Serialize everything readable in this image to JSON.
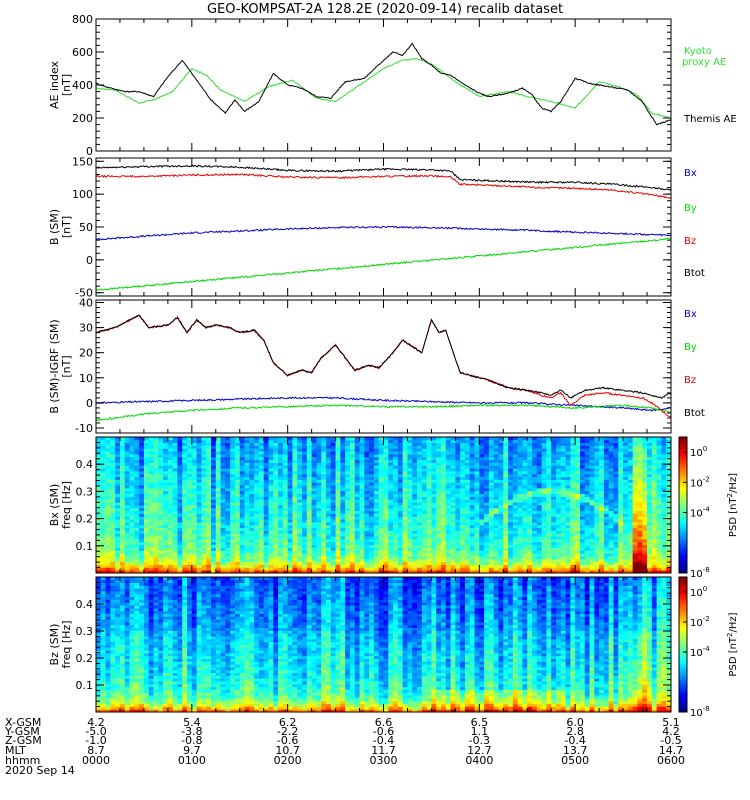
{
  "title": "GEO-KOMPSAT-2A 128.2E (2020-09-14) recalib dataset",
  "colors": {
    "black": "#000000",
    "red": "#e80000",
    "green": "#00d800",
    "blue": "#0000cc",
    "kyoto_green": "#33dd33"
  },
  "chart_data": [
    {
      "type": "line",
      "panel": "ae",
      "ylabel": "AE index",
      "yunits": "[nT]",
      "ylim": [
        0,
        800
      ],
      "yticks": [
        "0",
        "200",
        "400",
        "600",
        "800"
      ],
      "xlim": [
        0,
        6
      ],
      "series": [
        {
          "name": "Kyoto proxy AE",
          "color": "#33dd33",
          "x": [
            0,
            0.2,
            0.45,
            0.6,
            0.8,
            1.0,
            1.15,
            1.3,
            1.55,
            1.8,
            2.05,
            2.3,
            2.5,
            2.75,
            3.0,
            3.2,
            3.35,
            3.5,
            3.75,
            4.0,
            4.3,
            4.5,
            4.75,
            5.0,
            5.25,
            5.45,
            5.65,
            5.8,
            6.0
          ],
          "y": [
            380,
            370,
            290,
            310,
            360,
            500,
            460,
            370,
            300,
            390,
            430,
            320,
            300,
            400,
            500,
            550,
            560,
            530,
            420,
            330,
            360,
            330,
            300,
            260,
            420,
            390,
            340,
            230,
            200
          ]
        },
        {
          "name": "Themis AE",
          "color": "#000000",
          "x": [
            0,
            0.1,
            0.3,
            0.45,
            0.6,
            0.75,
            0.9,
            1.05,
            1.2,
            1.35,
            1.45,
            1.55,
            1.7,
            1.85,
            2.0,
            2.15,
            2.3,
            2.45,
            2.6,
            2.8,
            3.0,
            3.1,
            3.2,
            3.3,
            3.4,
            3.5,
            3.6,
            3.7,
            3.85,
            4.0,
            4.1,
            4.3,
            4.45,
            4.55,
            4.65,
            4.75,
            4.85,
            5.0,
            5.15,
            5.35,
            5.55,
            5.7,
            5.85,
            6.0
          ],
          "y": [
            410,
            390,
            360,
            360,
            330,
            450,
            550,
            430,
            310,
            230,
            310,
            240,
            300,
            470,
            400,
            380,
            330,
            320,
            420,
            440,
            550,
            600,
            580,
            650,
            560,
            520,
            470,
            460,
            400,
            350,
            330,
            350,
            380,
            340,
            260,
            240,
            300,
            440,
            410,
            390,
            370,
            300,
            160,
            190
          ]
        }
      ]
    },
    {
      "type": "line",
      "panel": "bfield",
      "ylabel": "B (SM)",
      "yunits": "[nT]",
      "ylim": [
        -55,
        155
      ],
      "yticks": [
        "-50",
        "0",
        "50",
        "100",
        "150"
      ],
      "xlim": [
        0,
        6
      ],
      "series": [
        {
          "name": "Bx",
          "color": "#0000cc",
          "x": [
            0,
            0.5,
            1.0,
            1.5,
            2.0,
            2.5,
            3.0,
            3.5,
            4.0,
            4.5,
            5.0,
            5.5,
            6.0
          ],
          "y": [
            31,
            36,
            41,
            44,
            47,
            49,
            50,
            49,
            47,
            45,
            42,
            40,
            37
          ]
        },
        {
          "name": "By",
          "color": "#00d800",
          "x": [
            0,
            6.0
          ],
          "y": [
            -46,
            32
          ]
        },
        {
          "name": "Bz",
          "color": "#e80000",
          "x": [
            0,
            0.5,
            1.0,
            1.5,
            2.0,
            2.5,
            3.0,
            3.5,
            3.7,
            3.8,
            4.2,
            4.6,
            5.0,
            5.4,
            5.8,
            6.0
          ],
          "y": [
            127,
            127,
            129,
            130,
            126,
            125,
            127,
            128,
            126,
            115,
            113,
            110,
            109,
            106,
            99,
            94
          ]
        },
        {
          "name": "Btot",
          "color": "#000000",
          "x": [
            0,
            0.5,
            1.0,
            1.5,
            2.0,
            2.5,
            3.0,
            3.5,
            3.7,
            3.8,
            4.2,
            4.6,
            5.0,
            5.4,
            5.8,
            6.0
          ],
          "y": [
            140,
            142,
            143,
            141,
            136,
            135,
            138,
            137,
            135,
            122,
            120,
            118,
            118,
            115,
            110,
            106
          ]
        }
      ]
    },
    {
      "type": "line",
      "panel": "residual",
      "ylabel": "B (SM)-IGRF (SM)",
      "yunits": "[nT]",
      "ylim": [
        -12,
        41
      ],
      "yticks": [
        "-10",
        "0",
        "10",
        "20",
        "30",
        "40"
      ],
      "xlim": [
        0,
        6
      ],
      "series": [
        {
          "name": "Bx",
          "color": "#0000cc",
          "x": [
            0,
            0.5,
            1.0,
            1.5,
            2.0,
            2.5,
            3.0,
            3.5,
            4.0,
            4.5,
            5.0,
            5.5,
            5.8,
            6.0
          ],
          "y": [
            0,
            0.5,
            1,
            1.5,
            2,
            2,
            1,
            0.5,
            0,
            0,
            -1,
            -2,
            -3,
            -2
          ]
        },
        {
          "name": "By",
          "color": "#00d800",
          "x": [
            0,
            0.3,
            0.6,
            1.0,
            1.5,
            2.0,
            2.5,
            3.0,
            3.5,
            4.0,
            4.5,
            5.0,
            5.5,
            5.8,
            6.0
          ],
          "y": [
            -7,
            -5.5,
            -4,
            -3,
            -2,
            -1.5,
            -1,
            -1.5,
            -1.5,
            -1,
            -1,
            -2,
            -1,
            -2,
            -4
          ]
        },
        {
          "name": "Bz",
          "color": "#e80000",
          "x": [
            0,
            0.2,
            0.35,
            0.45,
            0.55,
            0.75,
            0.85,
            0.95,
            1.05,
            1.15,
            1.25,
            1.4,
            1.5,
            1.65,
            1.75,
            1.85,
            2.0,
            2.15,
            2.25,
            2.35,
            2.5,
            2.7,
            2.85,
            2.95,
            3.1,
            3.2,
            3.4,
            3.5,
            3.58,
            3.65,
            3.8,
            4.0,
            4.1,
            4.3,
            4.5,
            4.65,
            4.75,
            4.85,
            4.95,
            5.1,
            5.3,
            5.5,
            5.7,
            5.8,
            5.9,
            6.0
          ],
          "y": [
            28,
            30,
            33,
            35,
            30,
            31,
            34,
            28,
            33,
            30,
            31,
            30,
            28,
            29,
            25,
            16,
            11,
            13,
            12,
            18,
            23,
            13,
            15,
            14,
            20,
            25,
            20,
            33,
            28,
            29,
            12,
            10,
            9,
            6,
            5,
            3,
            2,
            4,
            -1,
            3,
            4,
            3,
            2,
            0,
            -3,
            -6
          ]
        },
        {
          "name": "Btot",
          "color": "#000000",
          "x": [
            0,
            0.2,
            0.35,
            0.45,
            0.55,
            0.75,
            0.85,
            0.95,
            1.05,
            1.15,
            1.25,
            1.4,
            1.5,
            1.65,
            1.75,
            1.85,
            2.0,
            2.15,
            2.25,
            2.35,
            2.5,
            2.7,
            2.85,
            2.95,
            3.1,
            3.2,
            3.4,
            3.5,
            3.58,
            3.65,
            3.8,
            4.0,
            4.1,
            4.3,
            4.5,
            4.65,
            4.75,
            4.85,
            4.95,
            5.1,
            5.3,
            5.5,
            5.7,
            5.8,
            5.9,
            6.0
          ],
          "y": [
            28,
            30,
            33,
            35,
            30,
            31,
            34,
            28,
            33,
            30,
            31,
            30,
            28,
            29,
            25,
            16,
            11,
            13,
            12,
            18,
            23,
            13,
            15,
            14,
            20,
            25,
            20,
            33,
            28,
            29,
            12,
            10,
            9,
            6,
            5,
            4,
            3,
            5,
            2,
            5,
            6,
            5,
            4,
            3,
            2,
            4
          ]
        }
      ]
    },
    {
      "type": "heatmap",
      "panel": "spec_bx",
      "ylabel": "Bx (SM)",
      "yunits": "freq [Hz]",
      "ylim": [
        0,
        0.5
      ],
      "yticks": [
        "0.1",
        "0.2",
        "0.3",
        "0.4"
      ],
      "xlim": [
        0,
        6
      ],
      "colorbar_label": "PSD [nT^2/Hz]",
      "colorbar_ticks": [
        "10^0",
        "10^-2",
        "10^-4",
        "10^-8"
      ],
      "log_psd_range": [
        -8,
        1
      ],
      "features": {
        "enhancement_x": [
          5.6,
          5.75
        ],
        "arc_peak_x": 4.75,
        "arc_peak_f": 0.3
      }
    },
    {
      "type": "heatmap",
      "panel": "spec_bz",
      "ylabel": "Bz (SM)",
      "yunits": "freq [Hz]",
      "ylim": [
        0,
        0.5
      ],
      "yticks": [
        "0.1",
        "0.2",
        "0.3",
        "0.4"
      ],
      "xlim": [
        0,
        6
      ],
      "colorbar_label": "PSD [nT^2/Hz]",
      "colorbar_ticks": [
        "10^0",
        "10^-2",
        "10^-4",
        "10^-8"
      ],
      "log_psd_range": [
        -8,
        1
      ],
      "features": {
        "enhancement_x": [
          5.6,
          5.75
        ]
      }
    }
  ],
  "legends": {
    "ae": [
      {
        "text": "Kyoto",
        "color": "#33dd33"
      },
      {
        "text": "proxy AE",
        "color": "#33dd33"
      },
      {
        "text": "Themis AE",
        "color": "#000000"
      }
    ],
    "bfield": [
      {
        "text": "Bx",
        "color": "#0000cc"
      },
      {
        "text": "By",
        "color": "#00d800"
      },
      {
        "text": "Bz",
        "color": "#e80000"
      },
      {
        "text": "Btot",
        "color": "#000000"
      }
    ],
    "residual": [
      {
        "text": "Bx",
        "color": "#0000cc"
      },
      {
        "text": "By",
        "color": "#00d800"
      },
      {
        "text": "Bz",
        "color": "#e80000"
      },
      {
        "text": "Btot",
        "color": "#000000"
      }
    ]
  },
  "xaxis": {
    "row_labels": [
      "X-GSM",
      "Y-GSM",
      "Z-GSM",
      "MLT",
      "hhmm",
      "2020 Sep 14"
    ],
    "columns": [
      [
        "4.2",
        "-5.0",
        "-1.0",
        "8.7",
        "0000"
      ],
      [
        "5.4",
        "-3.8",
        "-0.8",
        "9.7",
        "0100"
      ],
      [
        "6.2",
        "-2.2",
        "-0.6",
        "10.7",
        "0200"
      ],
      [
        "6.6",
        "-0.6",
        "-0.4",
        "11.7",
        "0300"
      ],
      [
        "6.5",
        "1.1",
        "-0.3",
        "12.7",
        "0400"
      ],
      [
        "6.0",
        "2.8",
        "-0.4",
        "13.7",
        "0500"
      ],
      [
        "5.1",
        "4.2",
        "-0.5",
        "14.7",
        "0600"
      ]
    ]
  }
}
